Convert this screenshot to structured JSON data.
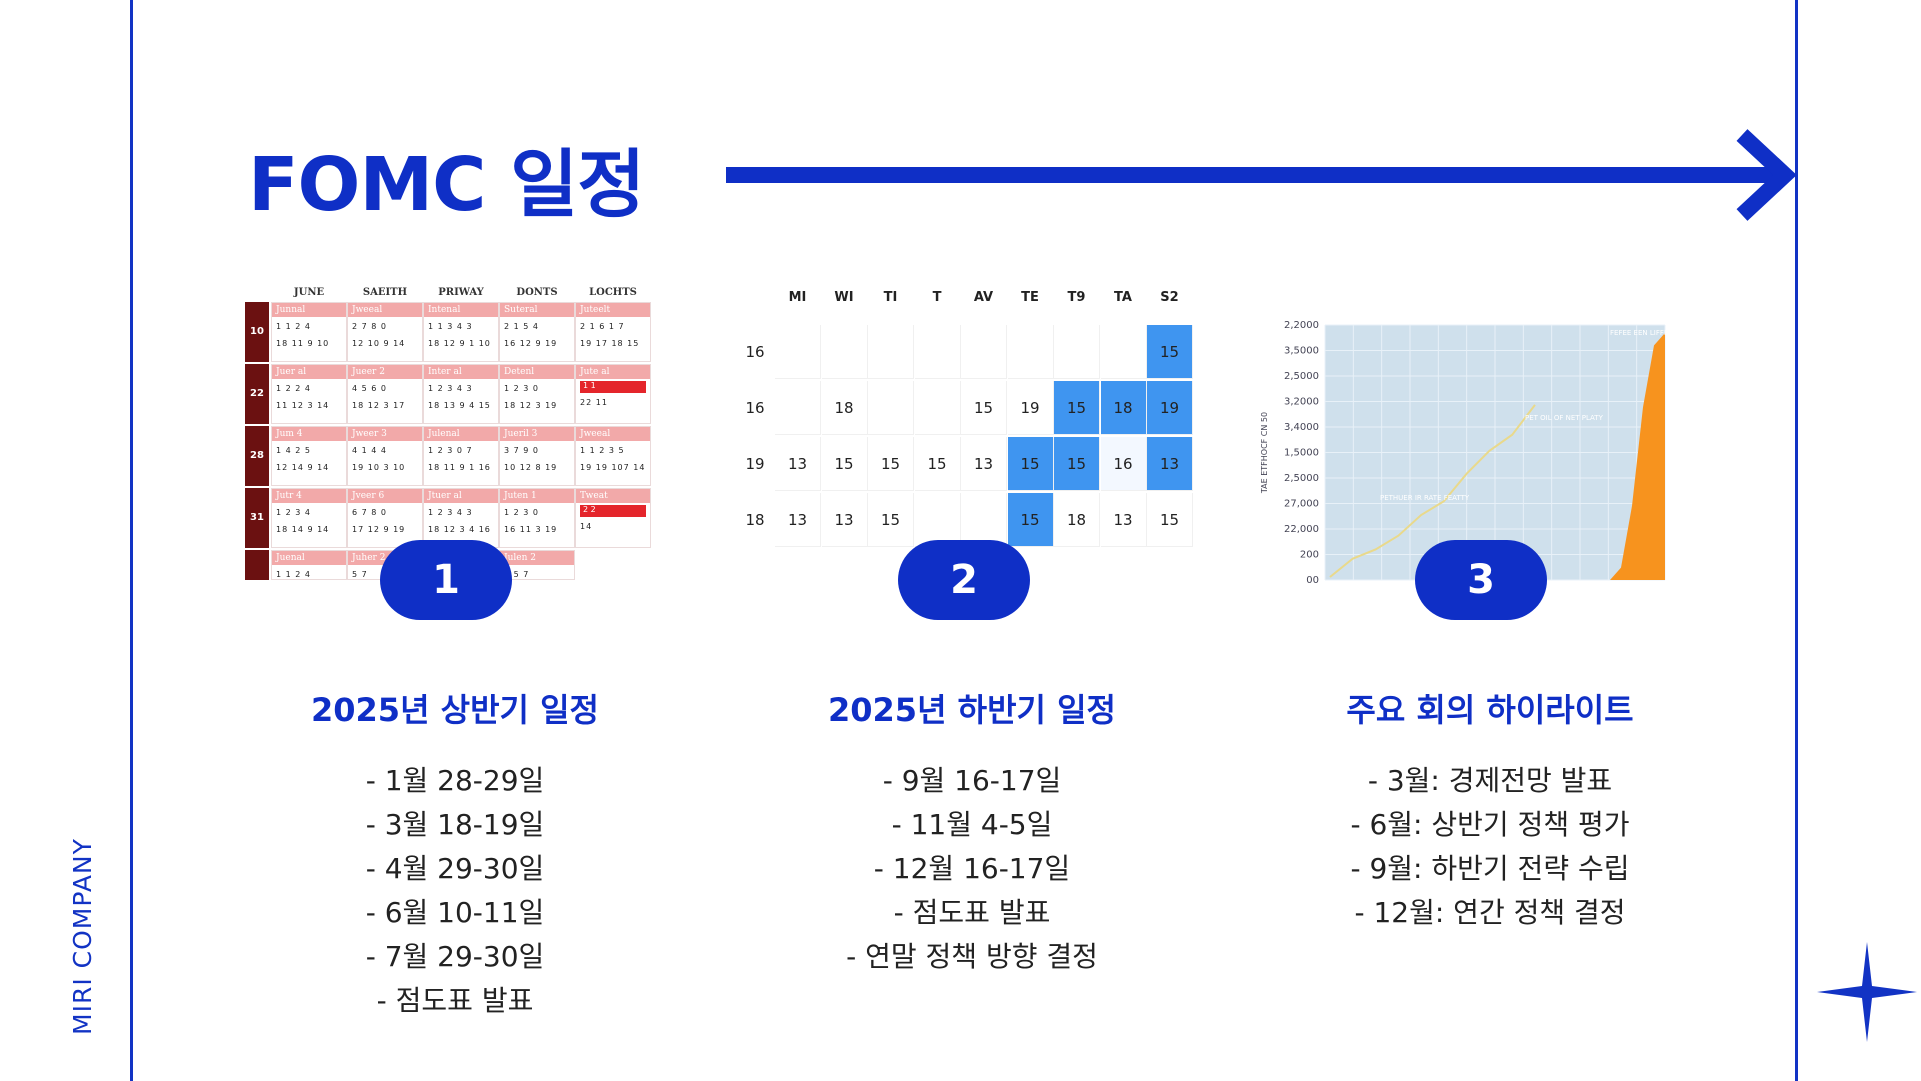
{
  "brand": "MIRI COMPANY",
  "title": "FOMC 일정",
  "colors": {
    "accent": "#0f2fc6",
    "calendar_red": "#e4252b",
    "calendar_blue": "#3f95f0",
    "chart_orange": "#f7931e"
  },
  "icons": {
    "arrow": "right-arrow-icon",
    "star": "sparkle-star-icon"
  },
  "badges": [
    "1",
    "2",
    "3"
  ],
  "calendar1": {
    "headers": [
      "JUNE",
      "SAEITH",
      "PRIWAY",
      "DONTS",
      "LOCHTS"
    ],
    "weeks": [
      "10",
      "22",
      "28",
      "31"
    ],
    "rows": [
      [
        {
          "band": "Junnal",
          "l1": "1  1 2 4",
          "l2": "18  11 9 10"
        },
        {
          "band": "Jweeal",
          "l1": "2  7 8 0",
          "l2": "12  10 9 14"
        },
        {
          "band": "Intenal",
          "l1": "1  1 3 4 3",
          "l2": "18  12 9 1 10"
        },
        {
          "band": "Suteral",
          "l1": "2  1 5 4",
          "l2": "16  12 9 19"
        },
        {
          "band": "Juteelt",
          "l1": "2  1 6 1 7",
          "l2": "19  17 18 15"
        }
      ],
      [
        {
          "band": "Juer al",
          "l1": "1  2 2 4",
          "l2": "11  12 3 14"
        },
        {
          "band": "Jueer 2",
          "l1": "4  5 6 0",
          "l2": "18  12 3 17"
        },
        {
          "band": "Inter al",
          "l1": "1  2 3 4 3",
          "l2": "18  13 9 4 15"
        },
        {
          "band": "Detenl",
          "l1": "1  2 3 0",
          "l2": "18  12 3 19"
        },
        {
          "band": "Jute al",
          "red": "1  1",
          "l2": "22           11"
        }
      ],
      [
        {
          "band": "Jum 4",
          "l1": "1  4 2 5",
          "l2": "12  14 9 14"
        },
        {
          "band": "Jweer 3",
          "l1": "4  1 4 4",
          "l2": "19  10 3 10"
        },
        {
          "band": "Julenal",
          "l1": "1  2 3 0 7",
          "l2": "18  11 9 1 16"
        },
        {
          "band": "Jueril 3",
          "l1": "3  7 9 0",
          "l2": "10  12 8 19"
        },
        {
          "band": "Jweeal",
          "l1": "1  1  2 3 5",
          "l2": "19  19  107 14"
        }
      ],
      [
        {
          "band": "Jutr 4",
          "l1": "1  2 3 4",
          "l2": "18  14 9 14"
        },
        {
          "band": "Jveer 6",
          "l1": "6  7 8 0",
          "l2": "17  12 9 19"
        },
        {
          "band": "Jtuer al",
          "l1": "1  2 3 4 3",
          "l2": "18  12 3 4 16"
        },
        {
          "band": "Juten 1",
          "l1": "1  2 3 0",
          "l2": "16  11 3 19"
        },
        {
          "band": "Tweat",
          "red": "2  2",
          "l2": "              14"
        }
      ]
    ],
    "last_row": [
      {
        "band": "Juenal",
        "l1": "1  1 2 4"
      },
      {
        "band": "Juher 2",
        "l1": "5  7"
      },
      {
        "band": "",
        "l1": ""
      },
      {
        "band": "Julen 2",
        "l1": "4 5 7"
      }
    ]
  },
  "calendar2": {
    "headers": [
      "MI",
      "WI",
      "TI",
      "T",
      "AV",
      "TE",
      "T9",
      "TA",
      "S2"
    ],
    "row_labels": [
      "16",
      "16",
      "19",
      "18"
    ],
    "rows": [
      [
        "",
        "",
        "",
        "",
        "",
        "",
        "",
        "",
        "15"
      ],
      [
        "",
        "18",
        "",
        "",
        "15",
        "19",
        "15",
        "18",
        "19"
      ],
      [
        "13",
        "15",
        "15",
        "15",
        "13",
        "15",
        "15",
        "16",
        "13"
      ],
      [
        "13",
        "13",
        "15",
        "",
        "",
        "15",
        "18",
        "13",
        "15"
      ]
    ],
    "blue_cells": [
      [
        0,
        8
      ],
      [
        1,
        6
      ],
      [
        1,
        7
      ],
      [
        1,
        8
      ],
      [
        2,
        5
      ],
      [
        2,
        6
      ],
      [
        2,
        8
      ],
      [
        3,
        5
      ]
    ],
    "pale_cells": [
      [
        2,
        7
      ]
    ]
  },
  "chart_data": {
    "type": "area",
    "ylabel": "TAE ETFHOCF CN 50",
    "y_ticks": [
      "2,2000",
      "3,5000",
      "2,5000",
      "3,2000",
      "3,4000",
      "1,5000",
      "2,5000",
      "27,000",
      "22,000",
      "200",
      "00"
    ],
    "annotations": [
      "FEFEE EEN LIFFEST FEATTY",
      "PET OIL OF NET PLATY",
      "PETHUER IR RATE FEATTY"
    ],
    "grid": true,
    "series": [
      {
        "values": [
          0.0,
          0.08,
          0.12,
          0.18,
          0.27,
          0.33,
          0.45,
          0.55,
          0.62,
          0.75
        ]
      },
      {
        "values": [
          0,
          0,
          0,
          0,
          0,
          0,
          0.05,
          0.3,
          0.7,
          0.95,
          1.0
        ]
      }
    ]
  },
  "columns": [
    {
      "heading": "2025년 상반기 일정",
      "items": [
        "- 1월 28-29일",
        "- 3월 18-19일",
        "- 4월 29-30일",
        "- 6월 10-11일",
        "- 7월 29-30일",
        "- 점도표 발표"
      ]
    },
    {
      "heading": "2025년 하반기 일정",
      "items": [
        "- 9월 16-17일",
        "- 11월 4-5일",
        "- 12월 16-17일",
        "- 점도표 발표",
        "- 연말 정책 방향 결정"
      ]
    },
    {
      "heading": "주요 회의 하이라이트",
      "items": [
        "- 3월: 경제전망 발표",
        "- 6월: 상반기 정책 평가",
        "- 9월: 하반기 전략 수립",
        "- 12월: 연간 정책 결정"
      ]
    }
  ]
}
